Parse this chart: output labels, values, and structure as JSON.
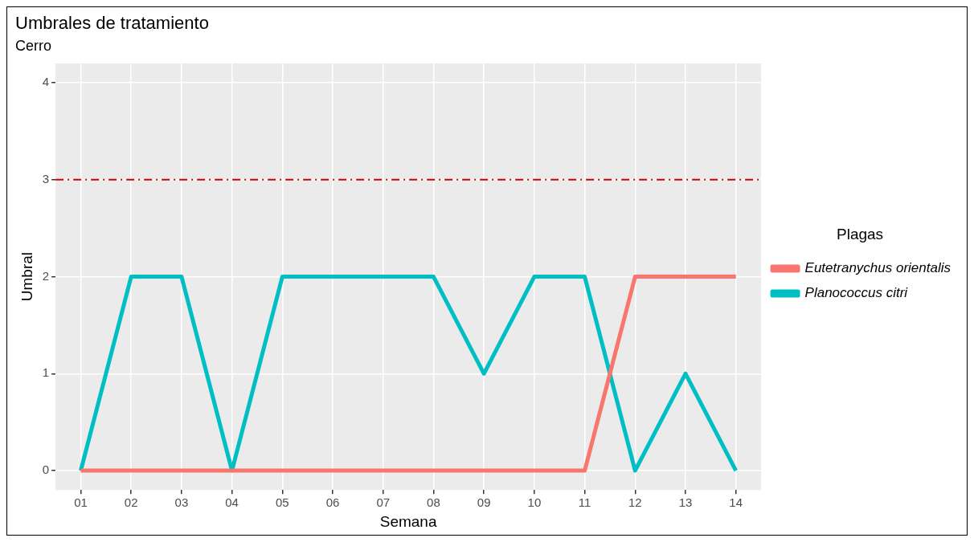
{
  "chart_data": {
    "type": "line",
    "title": "Umbrales de tratamiento",
    "subtitle": "Cerro",
    "xlabel": "Semana",
    "ylabel": "Umbral",
    "legend_title": "Plagas",
    "categories": [
      "01",
      "02",
      "03",
      "04",
      "05",
      "06",
      "07",
      "08",
      "09",
      "10",
      "11",
      "12",
      "13",
      "14"
    ],
    "series": [
      {
        "name": "Eutetranychus orientalis",
        "color": "#f8766d",
        "values": [
          0,
          0,
          0,
          0,
          0,
          0,
          0,
          0,
          0,
          0,
          0,
          2,
          2,
          2
        ]
      },
      {
        "name": "Planococcus citri",
        "color": "#00bfc4",
        "values": [
          0,
          2,
          2,
          0,
          2,
          2,
          2,
          2,
          1,
          2,
          2,
          0,
          1,
          0
        ]
      }
    ],
    "ylim": [
      -0.2,
      4.2
    ],
    "yticks": [
      0,
      1,
      2,
      3,
      4
    ],
    "grid": true,
    "legend": "right",
    "marker": "none",
    "line_style": "solid",
    "ref_lines": [
      {
        "axis": "y",
        "value": 3,
        "color": "#cc0000",
        "line_style": "dashed"
      }
    ]
  }
}
